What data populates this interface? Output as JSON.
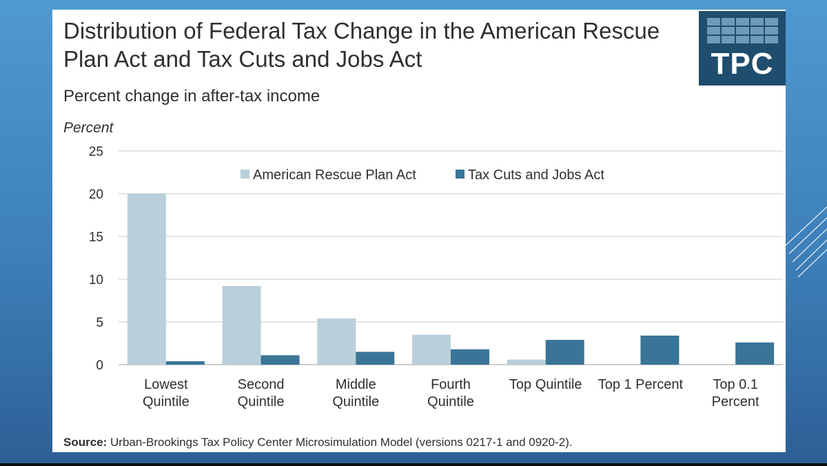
{
  "colors": {
    "series_1": "#b9cfdb",
    "series_2": "#3a7597",
    "logo_bg": "#1e4d6e",
    "gridline": "#dcdcdc"
  },
  "logo": {
    "text": "TPC"
  },
  "source": {
    "label": "Source:",
    "text": " Urban-Brookings Tax Policy Center Microsimulation Model (versions 0217-1 and 0920-2)."
  },
  "chart_data": {
    "type": "bar",
    "title": "Distribution of Federal Tax Change in the American Rescue Plan Act and Tax Cuts and Jobs Act",
    "subtitle": "Percent change in after-tax income",
    "ylabel": "Percent",
    "ylim": [
      0,
      25
    ],
    "yticks": [
      0,
      5,
      10,
      15,
      20,
      25
    ],
    "grid": true,
    "legend_position": "top-center",
    "categories": [
      [
        "Lowest",
        "Quintile"
      ],
      [
        "Second",
        "Quintile"
      ],
      [
        "Middle",
        "Quintile"
      ],
      [
        "Fourth",
        "Quintile"
      ],
      [
        "Top Quintile"
      ],
      [
        "Top 1 Percent"
      ],
      [
        "Top 0.1",
        "Percent"
      ]
    ],
    "series": [
      {
        "name": "American Rescue Plan Act",
        "values": [
          20.0,
          9.2,
          5.4,
          3.5,
          0.6,
          0.0,
          0.0
        ]
      },
      {
        "name": "Tax Cuts and Jobs Act",
        "values": [
          0.4,
          1.1,
          1.5,
          1.8,
          2.9,
          3.4,
          2.6
        ]
      }
    ]
  }
}
